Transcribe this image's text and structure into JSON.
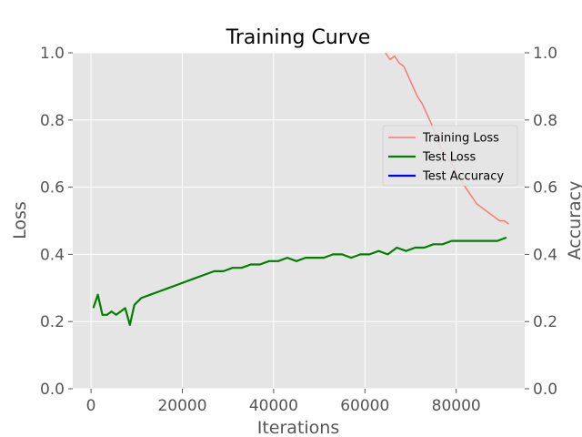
{
  "chart_data": {
    "type": "line",
    "title": "Training Curve",
    "xlabel": "Iterations",
    "ylabel": "Loss",
    "y2label": "Accuracy",
    "xlim": [
      -4000,
      95000
    ],
    "ylim": [
      0,
      1
    ],
    "y2lim": [
      0,
      1
    ],
    "xticks": [
      0,
      20000,
      40000,
      60000,
      80000
    ],
    "yticks": [
      0.0,
      0.2,
      0.4,
      0.6,
      0.8,
      1.0
    ],
    "ytick_labels": [
      "0.0",
      "0.2",
      "0.4",
      "0.6",
      "0.8",
      "1.0"
    ],
    "y2ticks": [
      0.0,
      0.2,
      0.4,
      0.6,
      0.8,
      1.0
    ],
    "y2tick_labels": [
      "0.0",
      "0.2",
      "0.4",
      "0.6",
      "0.8",
      "1.0"
    ],
    "grid": true,
    "legend_position": "center-right",
    "background_color": "#e5e5e5",
    "series": [
      {
        "name": "Training Loss",
        "color": "#f77b72",
        "axis": "left",
        "x": [
          64500,
          65500,
          66500,
          67500,
          68500,
          69500,
          70500,
          71500,
          72500,
          73500,
          74500,
          75500,
          76500,
          77500,
          78500,
          79500,
          80500,
          81500,
          82500,
          83500,
          84500,
          85500,
          86500,
          87500,
          88500,
          89500,
          90500,
          91500
        ],
        "y": [
          1.0,
          0.98,
          0.99,
          0.97,
          0.96,
          0.93,
          0.9,
          0.87,
          0.85,
          0.82,
          0.79,
          0.76,
          0.72,
          0.7,
          0.68,
          0.66,
          0.63,
          0.61,
          0.59,
          0.57,
          0.55,
          0.54,
          0.53,
          0.52,
          0.51,
          0.5,
          0.5,
          0.49
        ]
      },
      {
        "name": "Test Loss",
        "color": "#008000",
        "axis": "left",
        "x": [
          500,
          1500,
          2500,
          3500,
          4500,
          5500,
          6500,
          7500,
          8500,
          9500,
          11000,
          13000,
          15000,
          17000,
          19000,
          21000,
          23000,
          25000,
          27000,
          29000,
          31000,
          33000,
          35000,
          37000,
          39000,
          41000,
          43000,
          45000,
          47000,
          49000,
          51000,
          53000,
          55000,
          57000,
          59000,
          61000,
          63000,
          65000,
          67000,
          69000,
          71000,
          73000,
          75000,
          77000,
          79000,
          81000,
          83000,
          85000,
          87000,
          89000,
          91000
        ],
        "y": [
          0.24,
          0.28,
          0.22,
          0.22,
          0.23,
          0.22,
          0.23,
          0.24,
          0.19,
          0.25,
          0.27,
          0.28,
          0.29,
          0.3,
          0.31,
          0.32,
          0.33,
          0.34,
          0.35,
          0.35,
          0.36,
          0.36,
          0.37,
          0.37,
          0.38,
          0.38,
          0.39,
          0.38,
          0.39,
          0.39,
          0.39,
          0.4,
          0.4,
          0.39,
          0.4,
          0.4,
          0.41,
          0.4,
          0.42,
          0.41,
          0.42,
          0.42,
          0.43,
          0.43,
          0.44,
          0.44,
          0.44,
          0.44,
          0.44,
          0.44,
          0.45
        ]
      },
      {
        "name": "Test Accuracy",
        "color": "#0000ff",
        "axis": "right",
        "x": [],
        "y": []
      }
    ]
  }
}
